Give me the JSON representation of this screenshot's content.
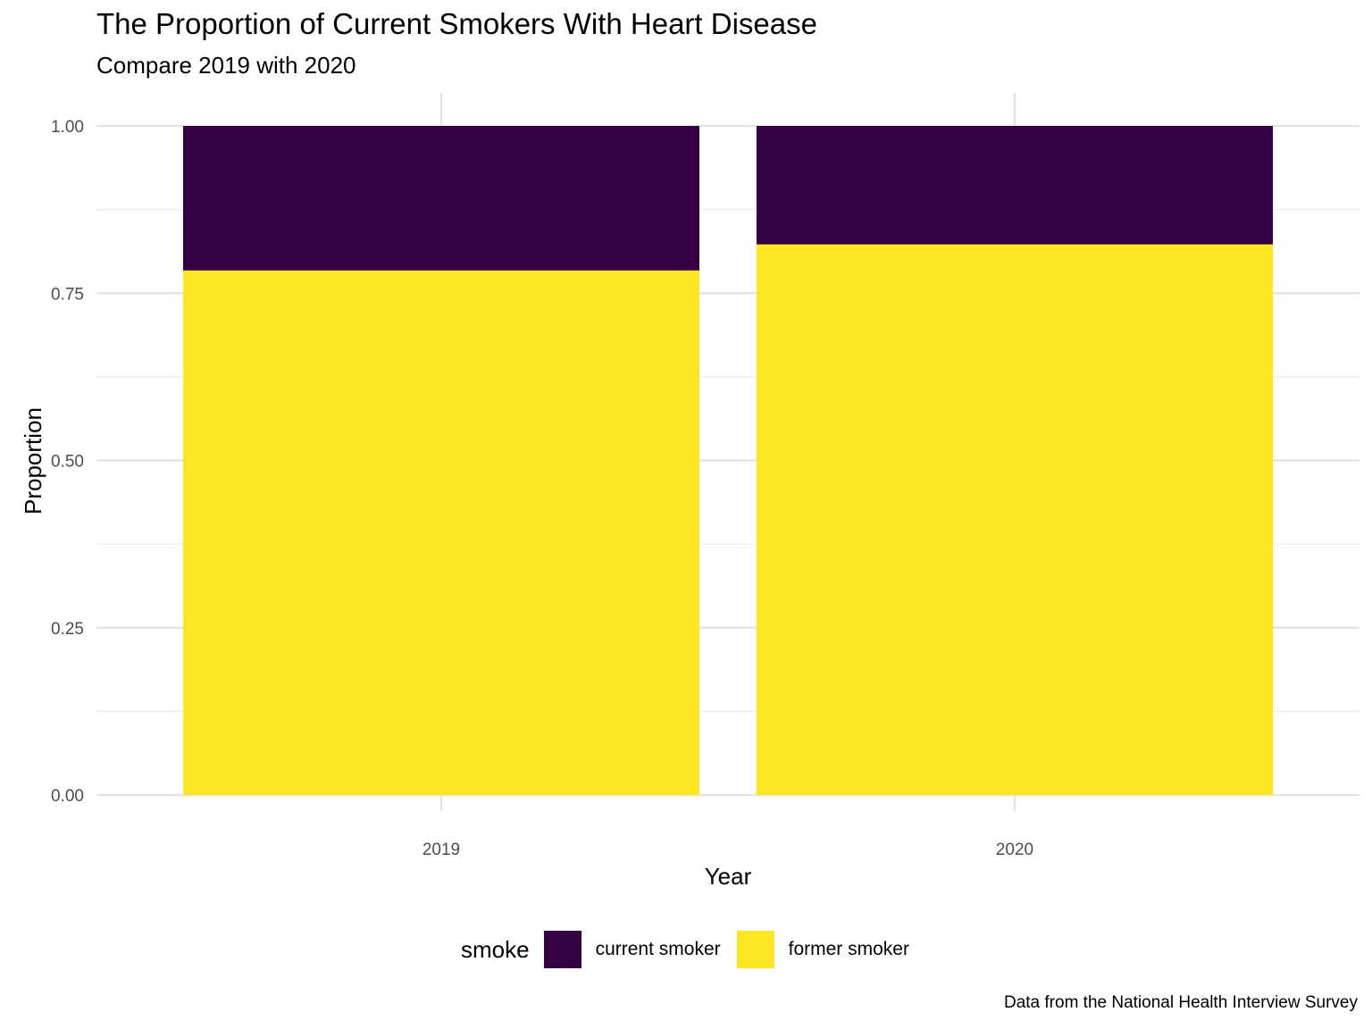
{
  "chart_data": {
    "type": "bar",
    "stacked": true,
    "title": "The Proportion of Current Smokers With Heart Disease",
    "subtitle": "Compare 2019 with 2020",
    "xlabel": "Year",
    "ylabel": "Proportion",
    "categories": [
      "2019",
      "2020"
    ],
    "ylim": [
      0,
      1
    ],
    "yticks": [
      "0.00",
      "0.25",
      "0.50",
      "0.75",
      "1.00"
    ],
    "series": [
      {
        "name": "former smoker",
        "color": "#FDE725",
        "values": [
          0.784,
          0.823
        ]
      },
      {
        "name": "current smoker",
        "color": "#340042",
        "values": [
          0.216,
          0.177
        ]
      }
    ],
    "legend": {
      "title": "smoke",
      "position": "bottom",
      "items": [
        {
          "label": "current smoker",
          "color": "#340042"
        },
        {
          "label": "former smoker",
          "color": "#FDE725"
        }
      ]
    },
    "caption": "Data from the National Health Interview Survey",
    "grid": true
  }
}
